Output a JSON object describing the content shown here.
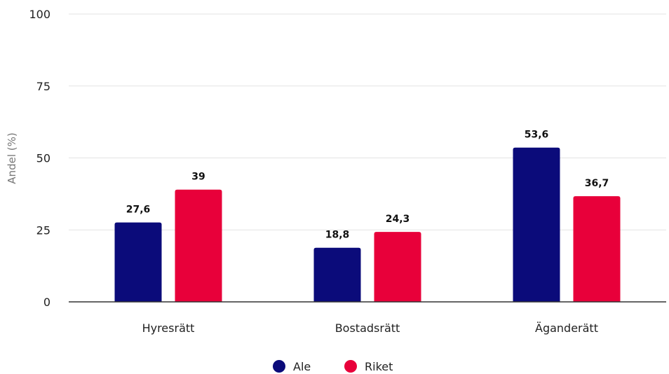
{
  "chart_data": {
    "type": "bar",
    "categories": [
      "Hyresrätt",
      "Bostadsrätt",
      "Äganderätt"
    ],
    "series": [
      {
        "name": "Ale",
        "color": "#0b0b7a",
        "values": [
          27.6,
          18.8,
          53.6
        ],
        "labels": [
          "27,6",
          "18,8",
          "53,6"
        ]
      },
      {
        "name": "Riket",
        "color": "#e8003a",
        "values": [
          39,
          24.3,
          36.7
        ],
        "labels": [
          "39",
          "24,3",
          "36,7"
        ]
      }
    ],
    "ylabel": "Andel (%)",
    "ylim": [
      0,
      100
    ],
    "yticks": [
      0,
      25,
      50,
      75,
      100
    ],
    "ytick_labels": [
      "0",
      "25",
      "50",
      "75",
      "100"
    ],
    "grid": true,
    "legend_position": "bottom-center"
  }
}
